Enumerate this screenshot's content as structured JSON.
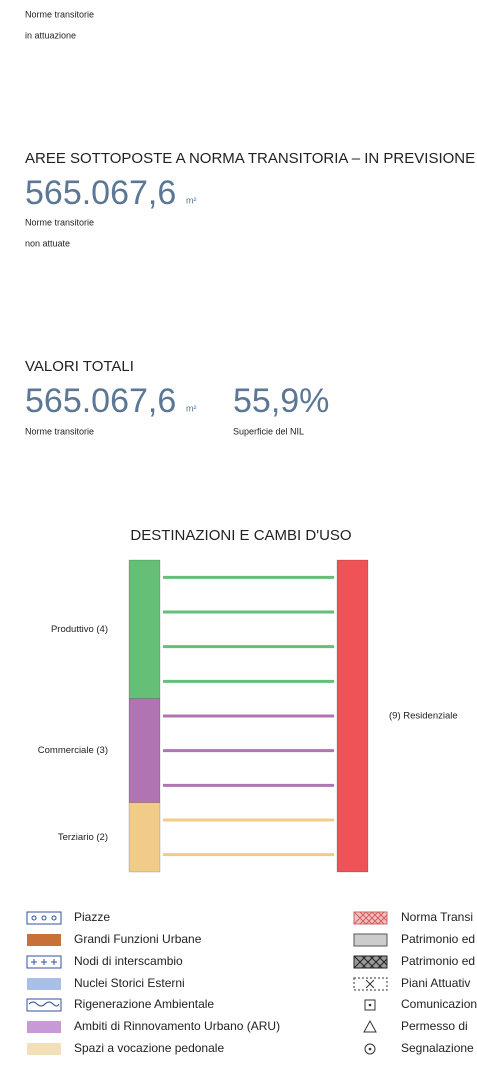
{
  "sections": [
    {
      "note": [
        "Norme transitorie",
        "in attuazione"
      ]
    },
    {
      "heading": "AREE SOTTOPOSTE A NORMA TRANSITORIA – IN PREVISIONE",
      "value": "565.067,6",
      "unit": "m²",
      "note": [
        "Norme transitorie",
        "non attuate"
      ]
    }
  ],
  "totals": {
    "heading": "VALORI TOTALI",
    "items": [
      {
        "value": "565.067,6",
        "unit": "m²",
        "note": "Norme transitorie"
      },
      {
        "value": "55,9%",
        "note": "Superficie del NIL"
      }
    ]
  },
  "diagram": {
    "title": "DESTINAZIONI E CAMBI D'USO",
    "sources": [
      {
        "label": "Produttivo (4)",
        "value": 4,
        "color": "#66bf77"
      },
      {
        "label": "Commerciale (3)",
        "value": 3,
        "color": "#b074b3"
      },
      {
        "label": "Terziario (2)",
        "value": 2,
        "color": "#f0cc88"
      }
    ],
    "target": {
      "label": "(9) Residenziale",
      "value": 9,
      "color": "#ef5358"
    }
  },
  "legend": {
    "left": [
      "Piazze",
      "Grandi Funzioni Urbane",
      "Nodi di interscambio",
      "Nuclei Storici Esterni",
      "Rigenerazione Ambientale",
      "Ambiti di Rinnovamento Urbano (ARU)",
      "Spazi a vocazione pedonale"
    ],
    "right": [
      "Norma Transi",
      "Patrimonio ed",
      "Patrimonio ed",
      "Piani Attuativ",
      "Comunicazion",
      "Permesso di",
      "Segnalazione"
    ]
  }
}
